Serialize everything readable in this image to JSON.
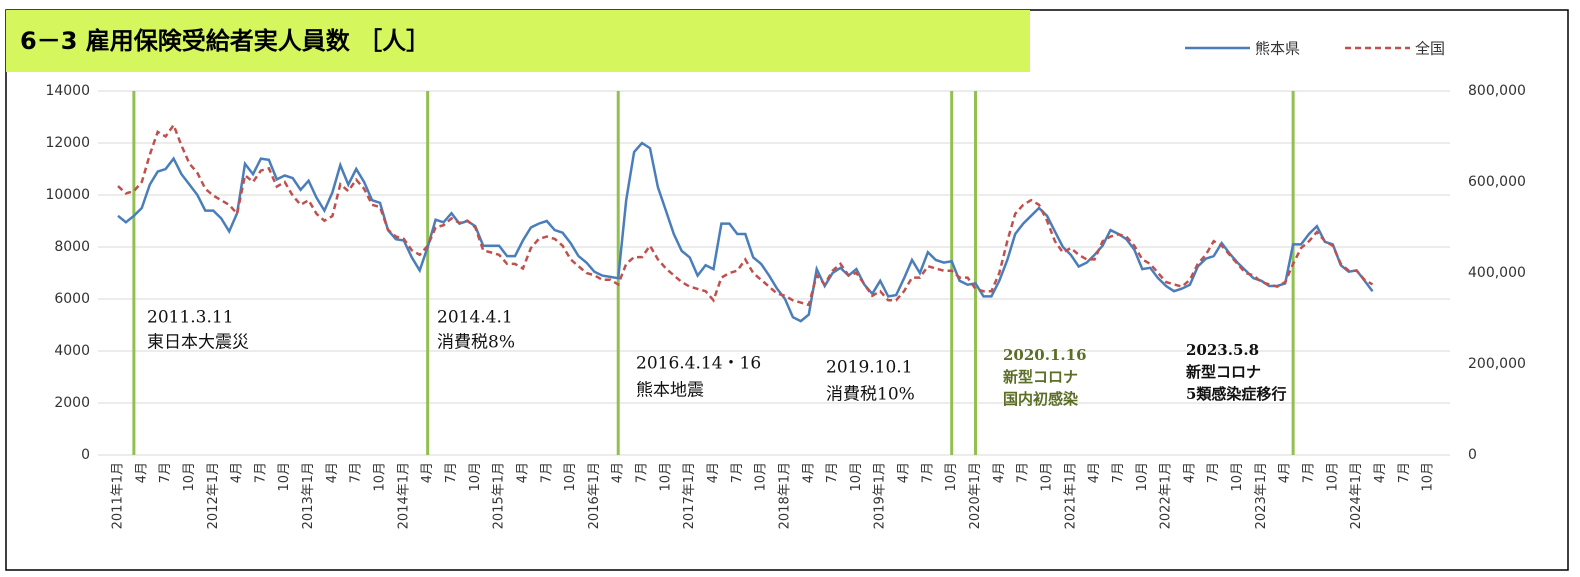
{
  "chart_data": {
    "type": "line",
    "title": "6－3 雇用保険受給者実人員数 ［人］",
    "categories": [
      "2011年1月",
      null,
      null,
      "4月",
      null,
      null,
      "7月",
      null,
      null,
      "10月",
      null,
      null,
      "2012年1月",
      null,
      null,
      "4月",
      null,
      null,
      "7月",
      null,
      null,
      "10月",
      null,
      null,
      "2013年1月",
      null,
      null,
      "4月",
      null,
      null,
      "7月",
      null,
      null,
      "10月",
      null,
      null,
      "2014年1月",
      null,
      null,
      "4月",
      null,
      null,
      "7月",
      null,
      null,
      "10月",
      null,
      null,
      "2015年1月",
      null,
      null,
      "4月",
      null,
      null,
      "7月",
      null,
      null,
      "10月",
      null,
      null,
      "2016年1月",
      null,
      null,
      "4月",
      null,
      null,
      "7月",
      null,
      null,
      "10月",
      null,
      null,
      "2017年1月",
      null,
      null,
      "4月",
      null,
      null,
      "7月",
      null,
      null,
      "10月",
      null,
      null,
      "2018年1月",
      null,
      null,
      "4月",
      null,
      null,
      "7月",
      null,
      null,
      "10月",
      null,
      null,
      "2019年1月",
      null,
      null,
      "4月",
      null,
      null,
      "7月",
      null,
      null,
      "10月",
      null,
      null,
      "2020年1月",
      null,
      null,
      "4月",
      null,
      null,
      "7月",
      null,
      null,
      "10月",
      null,
      null,
      "2021年1月",
      null,
      null,
      "4月",
      null,
      null,
      "7月",
      null,
      null,
      "10月",
      null,
      null,
      "2022年1月",
      null,
      null,
      "4月",
      null,
      null,
      "7月",
      null,
      null,
      "10月",
      null,
      null,
      "2023年1月",
      null,
      null,
      "4月",
      null,
      null,
      "7月",
      null,
      null,
      "10月",
      null,
      null,
      "2024年1月",
      null,
      null,
      "4月",
      null,
      null,
      "7月",
      null,
      null,
      "10月",
      null,
      null
    ],
    "series": [
      {
        "name": "熊本県",
        "color": "#4a7ebb",
        "dash": false,
        "values": [
          9200,
          8950,
          9200,
          9500,
          10400,
          10900,
          11000,
          11400,
          10800,
          10400,
          10000,
          9400,
          9400,
          9100,
          8600,
          9300,
          11200,
          10800,
          11400,
          11350,
          10600,
          10750,
          10650,
          10200,
          10550,
          9900,
          9400,
          10100,
          11150,
          10400,
          11000,
          10500,
          9800,
          9700,
          8650,
          8300,
          8250,
          7600,
          7100,
          8000,
          9050,
          8950,
          9300,
          8900,
          9000,
          8800,
          8050,
          8050,
          8050,
          7650,
          7650,
          8250,
          8750,
          8900,
          9000,
          8650,
          8550,
          8150,
          7650,
          7400,
          7050,
          6900,
          6850,
          6800,
          9800,
          11650,
          12000,
          11800,
          10300,
          9400,
          8500,
          7850,
          7600,
          6900,
          7300,
          7150,
          8900,
          8900,
          8500,
          8500,
          7600,
          7350,
          6900,
          6400,
          6000,
          5300,
          5150,
          5400,
          7150,
          6500,
          7000,
          7200,
          6900,
          7150,
          6550,
          6200,
          6700,
          6100,
          6150,
          6800,
          7500,
          7000,
          7800,
          7500,
          7400,
          7450,
          6700,
          6550,
          6600,
          6100,
          6100,
          6700,
          7500,
          8500,
          8900,
          9200,
          9500,
          9200,
          8600,
          8000,
          7700,
          7250,
          7400,
          7700,
          8050,
          8650,
          8500,
          8300,
          7900,
          7150,
          7200,
          6800,
          6500,
          6300,
          6400,
          6550,
          7250,
          7550,
          7650,
          8150,
          7750,
          7400,
          7100,
          6800,
          6700,
          6500,
          6500,
          6600,
          8100,
          8100,
          8500,
          8800,
          8200,
          8100,
          7300,
          7050,
          7100,
          6700,
          6300,
          null,
          null,
          null,
          null,
          null,
          null,
          null,
          null,
          null
        ]
      },
      {
        "name": "全国",
        "color": "#c0504d",
        "dash": true,
        "axis": "y2",
        "values": [
          591000,
          575000,
          580000,
          600000,
          660000,
          710000,
          700000,
          725000,
          680000,
          640000,
          620000,
          585000,
          570000,
          560000,
          550000,
          530000,
          615000,
          600000,
          625000,
          630000,
          590000,
          600000,
          570000,
          550000,
          560000,
          530000,
          515000,
          525000,
          595000,
          580000,
          605000,
          585000,
          550000,
          545000,
          495000,
          480000,
          475000,
          450000,
          440000,
          460000,
          500000,
          505000,
          520000,
          510000,
          515000,
          500000,
          450000,
          445000,
          440000,
          420000,
          420000,
          410000,
          455000,
          475000,
          480000,
          475000,
          460000,
          430000,
          415000,
          400000,
          395000,
          385000,
          385000,
          375000,
          420000,
          435000,
          435000,
          460000,
          430000,
          410000,
          395000,
          380000,
          370000,
          365000,
          360000,
          340000,
          390000,
          400000,
          405000,
          430000,
          400000,
          385000,
          370000,
          355000,
          350000,
          340000,
          335000,
          330000,
          395000,
          375000,
          405000,
          420000,
          395000,
          400000,
          375000,
          350000,
          360000,
          340000,
          340000,
          360000,
          390000,
          390000,
          415000,
          410000,
          405000,
          405000,
          390000,
          390000,
          365000,
          360000,
          360000,
          400000,
          470000,
          530000,
          550000,
          560000,
          550000,
          515000,
          470000,
          445000,
          455000,
          440000,
          430000,
          430000,
          470000,
          480000,
          485000,
          480000,
          460000,
          430000,
          420000,
          400000,
          380000,
          375000,
          370000,
          385000,
          420000,
          440000,
          470000,
          460000,
          440000,
          420000,
          400000,
          395000,
          380000,
          375000,
          370000,
          380000,
          420000,
          455000,
          470000,
          490000,
          470000,
          460000,
          420000,
          405000,
          405000,
          385000,
          375000,
          null,
          null,
          null,
          null,
          null,
          null,
          null,
          null,
          null
        ]
      }
    ],
    "ylim": [
      0,
      14000
    ],
    "yticks": [
      0,
      2000,
      4000,
      6000,
      8000,
      10000,
      12000,
      14000
    ],
    "y2lim": [
      0,
      800000
    ],
    "y2ticks": [
      0,
      {
        "value": 200000,
        "label": "200,000"
      },
      {
        "value": 400000,
        "label": "400,000"
      },
      {
        "value": 600000,
        "label": "600,000"
      },
      {
        "value": 800000,
        "label": "800,000"
      }
    ],
    "grid": true,
    "legend": "top-right",
    "annotations": [
      {
        "lines": [
          "2011.3.11",
          "東日本大震災"
        ],
        "color": "#111111",
        "bold": false
      },
      {
        "lines": [
          "2014.4.1",
          "消費税8%"
        ],
        "color": "#111111",
        "bold": false
      },
      {
        "lines": [
          "2016.4.14・16",
          "熊本地震"
        ],
        "color": "#111111",
        "bold": false
      },
      {
        "lines": [
          "2019.10.1",
          "消費税10%"
        ],
        "color": "#111111",
        "bold": false
      },
      {
        "lines": [
          "2020.1.16",
          "新型コロナ",
          "国内初感染"
        ],
        "color": "#5b6e26",
        "bold": true
      },
      {
        "lines": [
          "2023.5.8",
          "新型コロナ",
          "5類感染症移行"
        ],
        "color": "#111111",
        "bold": true
      }
    ],
    "event_line_color": "#92c050",
    "title_background": "#d6f65e"
  }
}
